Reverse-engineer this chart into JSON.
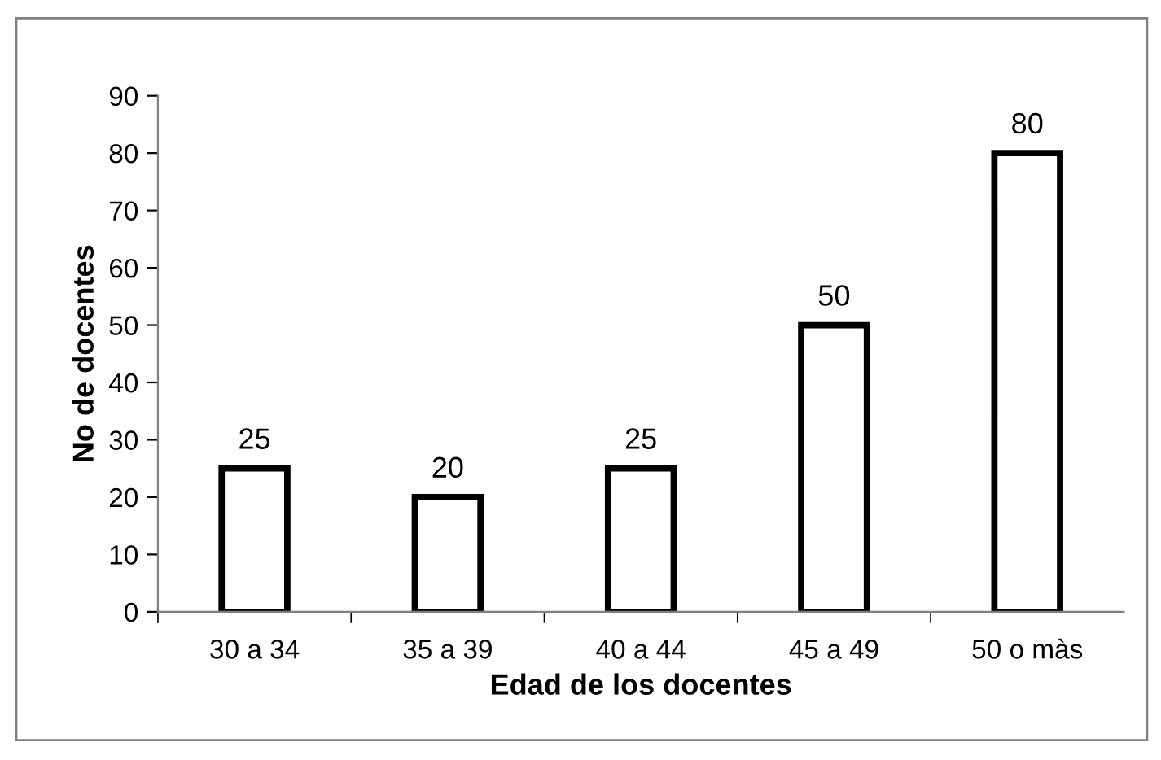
{
  "chart_data": {
    "type": "bar",
    "xlabel": "Edad de los docentes",
    "ylabel": "No de docentes",
    "categories": [
      "30 a 34",
      "35 a 39",
      "40 a 44",
      "45 a 49",
      "50 o màs"
    ],
    "values": [
      25,
      20,
      25,
      50,
      80
    ],
    "color": "#ffffff",
    "ylim": [
      0,
      90
    ],
    "yticks": [
      0,
      10,
      20,
      30,
      40,
      50,
      60,
      70,
      80,
      90
    ],
    "grid": false,
    "data_labels": true
  }
}
